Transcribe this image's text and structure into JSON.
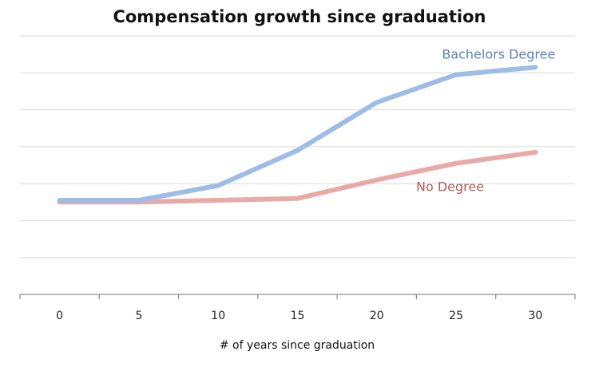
{
  "chart_data": {
    "type": "line",
    "title": "Compensation growth since graduation",
    "xlabel": "# of years since graduation",
    "ylabel": "",
    "x": [
      0,
      5,
      10,
      15,
      20,
      25,
      30
    ],
    "xlim": [
      -2.5,
      32.5
    ],
    "ylim": [
      0,
      7
    ],
    "grid": true,
    "legend": "inline labels at line ends",
    "series": [
      {
        "name": "Bachelors Degree",
        "color": "#9dbde6",
        "label_color": "#5b82b6",
        "values": [
          2.55,
          2.55,
          2.95,
          3.9,
          5.2,
          5.95,
          6.15
        ]
      },
      {
        "name": "No Degree",
        "color": "#e8a9a7",
        "label_color": "#b85b58",
        "values": [
          2.5,
          2.5,
          2.55,
          2.6,
          3.1,
          3.55,
          3.85
        ]
      }
    ]
  }
}
